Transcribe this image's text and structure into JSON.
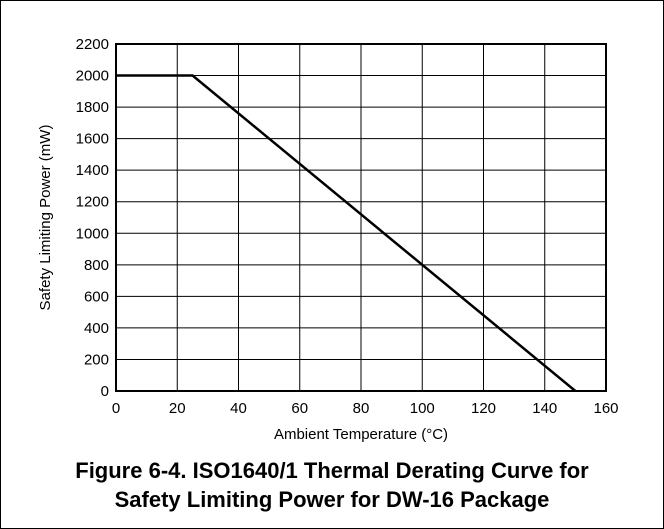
{
  "chart_data": {
    "type": "line",
    "title": "",
    "xlabel": "Ambient Temperature (°C)",
    "ylabel": "Safety Limiting Power (mW)",
    "xlim": [
      0,
      160
    ],
    "ylim": [
      0,
      2200
    ],
    "x_ticks": [
      0,
      20,
      40,
      60,
      80,
      100,
      120,
      140,
      160
    ],
    "y_ticks": [
      0,
      200,
      400,
      600,
      800,
      1000,
      1200,
      1400,
      1600,
      1800,
      2000,
      2200
    ],
    "grid": true,
    "series": [
      {
        "x": [
          0,
          25,
          150
        ],
        "y": [
          2000,
          2000,
          0
        ]
      }
    ]
  },
  "caption": {
    "line1": "Figure 6-4. ISO1640/1 Thermal Derating Curve for",
    "line2": "Safety Limiting Power for DW-16 Package"
  }
}
